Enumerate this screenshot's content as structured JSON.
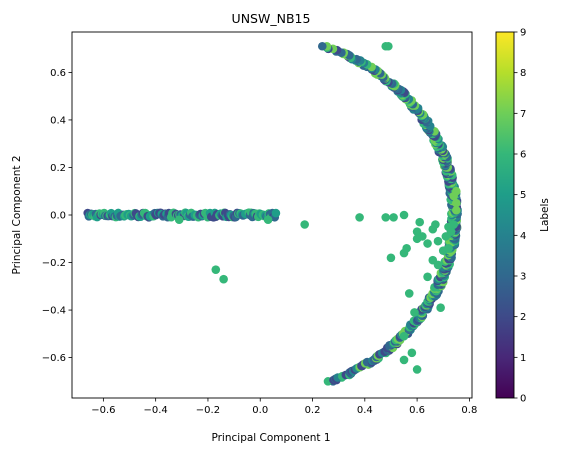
{
  "chart_data": {
    "type": "scatter",
    "title": "UNSW_NB15",
    "xlabel": "Principal Component 1",
    "ylabel": "Principal Component 2",
    "xlim": [
      -0.72,
      0.81
    ],
    "ylim": [
      -0.77,
      0.77
    ],
    "x_ticks": [
      -0.6,
      -0.4,
      -0.2,
      0.0,
      0.2,
      0.4,
      0.6,
      0.8
    ],
    "x_tick_labels": [
      "−0.6",
      "−0.4",
      "−0.2",
      "0.0",
      "0.2",
      "0.4",
      "0.6",
      "0.8"
    ],
    "y_ticks": [
      -0.6,
      -0.4,
      -0.2,
      0.0,
      0.2,
      0.4,
      0.6
    ],
    "y_tick_labels": [
      "−0.6",
      "−0.4",
      "−0.2",
      "0.0",
      "0.2",
      "0.4",
      "0.6"
    ],
    "grid": false,
    "colormap": "viridis",
    "colorbar": {
      "label": "Labels",
      "range": [
        0,
        9
      ],
      "ticks": [
        0,
        1,
        2,
        3,
        4,
        5,
        6,
        7,
        8,
        9
      ],
      "tick_labels": [
        "0",
        "1",
        "2",
        "3",
        "4",
        "5",
        "6",
        "7",
        "8",
        "9"
      ]
    },
    "clusters": [
      {
        "shape": "band",
        "x_range": [
          -0.66,
          0.06
        ],
        "y": 0.0,
        "labels": [
          2,
          3,
          5,
          6
        ]
      },
      {
        "shape": "arc",
        "center": [
          0.0,
          0.0
        ],
        "radius": 0.755,
        "y_range": [
          -0.7,
          0.71
        ],
        "labels": [
          2,
          3,
          4,
          6,
          7
        ]
      }
    ],
    "points": [
      {
        "x": -0.31,
        "y": -0.02,
        "label": 6
      },
      {
        "x": -0.17,
        "y": -0.23,
        "label": 6
      },
      {
        "x": -0.14,
        "y": -0.27,
        "label": 6
      },
      {
        "x": 0.03,
        "y": -0.02,
        "label": 6
      },
      {
        "x": 0.17,
        "y": -0.04,
        "label": 6
      },
      {
        "x": 0.38,
        "y": -0.01,
        "label": 6
      },
      {
        "x": 0.48,
        "y": 0.71,
        "label": 6
      },
      {
        "x": 0.49,
        "y": 0.71,
        "label": 6
      },
      {
        "x": 0.48,
        "y": -0.01,
        "label": 6
      },
      {
        "x": 0.5,
        "y": -0.18,
        "label": 6
      },
      {
        "x": 0.51,
        "y": -0.01,
        "label": 6
      },
      {
        "x": 0.55,
        "y": 0.0,
        "label": 6
      },
      {
        "x": 0.55,
        "y": -0.16,
        "label": 6
      },
      {
        "x": 0.56,
        "y": -0.14,
        "label": 6
      },
      {
        "x": 0.55,
        "y": -0.51,
        "label": 6
      },
      {
        "x": 0.55,
        "y": -0.61,
        "label": 6
      },
      {
        "x": 0.57,
        "y": -0.33,
        "label": 6
      },
      {
        "x": 0.58,
        "y": -0.58,
        "label": 6
      },
      {
        "x": 0.59,
        "y": -0.41,
        "label": 6
      },
      {
        "x": 0.6,
        "y": -0.07,
        "label": 6
      },
      {
        "x": 0.6,
        "y": -0.1,
        "label": 6
      },
      {
        "x": 0.6,
        "y": -0.65,
        "label": 6
      },
      {
        "x": 0.61,
        "y": -0.03,
        "label": 6
      },
      {
        "x": 0.62,
        "y": -0.09,
        "label": 6
      },
      {
        "x": 0.64,
        "y": -0.26,
        "label": 6
      },
      {
        "x": 0.64,
        "y": -0.12,
        "label": 6
      },
      {
        "x": 0.66,
        "y": -0.06,
        "label": 6
      },
      {
        "x": 0.66,
        "y": -0.19,
        "label": 6
      },
      {
        "x": 0.67,
        "y": -0.04,
        "label": 6
      },
      {
        "x": 0.68,
        "y": -0.11,
        "label": 6
      },
      {
        "x": 0.68,
        "y": -0.21,
        "label": 6
      },
      {
        "x": 0.69,
        "y": -0.39,
        "label": 6
      },
      {
        "x": 0.7,
        "y": -0.15,
        "label": 6
      },
      {
        "x": 0.71,
        "y": -0.09,
        "label": 6
      },
      {
        "x": 0.72,
        "y": -0.05,
        "label": 6
      },
      {
        "x": 0.72,
        "y": -0.14,
        "label": 6
      },
      {
        "x": 0.73,
        "y": -0.07,
        "label": 6
      },
      {
        "x": 0.74,
        "y": -0.04,
        "label": 6
      },
      {
        "x": 0.75,
        "y": 0.02,
        "label": 7
      },
      {
        "x": 0.75,
        "y": 0.05,
        "label": 7
      },
      {
        "x": 0.75,
        "y": 0.1,
        "label": 7
      },
      {
        "x": 0.74,
        "y": 0.08,
        "label": 7
      }
    ]
  }
}
